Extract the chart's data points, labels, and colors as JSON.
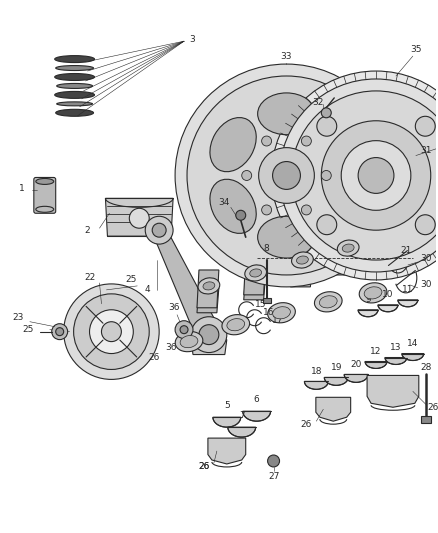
{
  "bg_color": "#ffffff",
  "line_color": "#2a2a2a",
  "lw": 0.8,
  "label_fontsize": 6.5,
  "fig_width": 4.38,
  "fig_height": 5.33,
  "dpi": 100
}
